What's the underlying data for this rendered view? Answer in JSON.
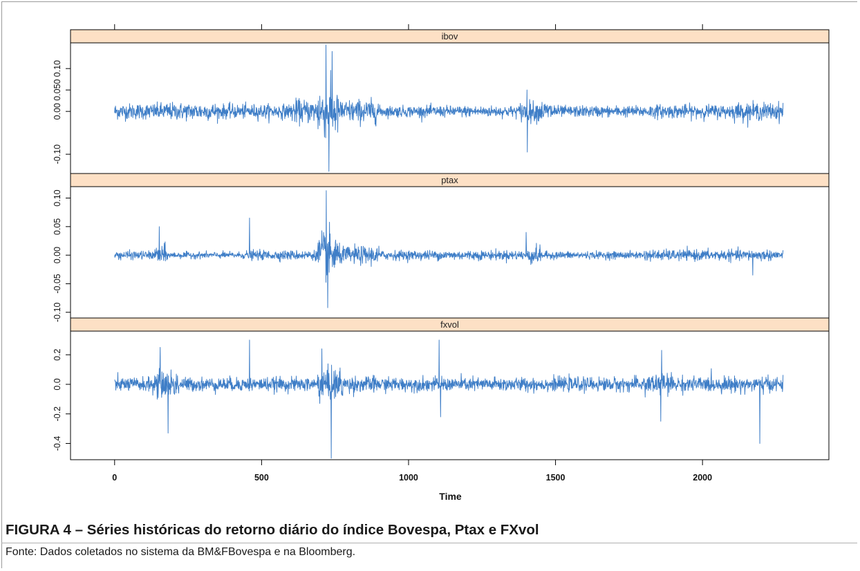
{
  "chart_data": {
    "type": "line",
    "xlabel": "Time",
    "xlim": [
      -150,
      2430
    ],
    "x_ticks": [
      0,
      500,
      1000,
      1500,
      2000
    ],
    "x_tick_labels": [
      "0",
      "500",
      "1000",
      "1500",
      "2000"
    ],
    "n_points": 2275,
    "line_color": "#3f7ec7",
    "strip_color": "#fde0c5",
    "panels": [
      {
        "name": "ibov",
        "ylim": [
          -0.145,
          0.16
        ],
        "y_ticks": [
          -0.1,
          0.0,
          0.05,
          0.1
        ],
        "y_tick_labels": [
          "-0.10",
          "0.00",
          "0.050",
          "0.10"
        ],
        "min": -0.14,
        "max": 0.155,
        "regimes": [
          {
            "x": [
              0,
              150
            ],
            "amp": 0.02
          },
          {
            "x": [
              150,
              350
            ],
            "amp": 0.022
          },
          {
            "x": [
              350,
              600
            ],
            "amp": 0.018
          },
          {
            "x": [
              600,
              690
            ],
            "amp": 0.03
          },
          {
            "x": [
              690,
              760
            ],
            "amp": 0.065
          },
          {
            "x": [
              760,
              900
            ],
            "amp": 0.03
          },
          {
            "x": [
              900,
              1380
            ],
            "amp": 0.014
          },
          {
            "x": [
              1380,
              1500
            ],
            "amp": 0.026
          },
          {
            "x": [
              1500,
              1800
            ],
            "amp": 0.014
          },
          {
            "x": [
              1800,
              2100
            ],
            "amp": 0.017
          },
          {
            "x": [
              2100,
              2275
            ],
            "amp": 0.022
          }
        ],
        "spikes": [
          {
            "x": 719,
            "y": 0.155
          },
          {
            "x": 729,
            "y": -0.14
          },
          {
            "x": 740,
            "y": 0.14
          },
          {
            "x": 1404,
            "y": -0.095
          },
          {
            "x": 1403,
            "y": 0.05
          }
        ]
      },
      {
        "name": "ptax",
        "ylim": [
          -0.11,
          0.12
        ],
        "y_ticks": [
          -0.1,
          -0.05,
          0.0,
          0.05,
          0.1
        ],
        "y_tick_labels": [
          "-0.10",
          "-0.05",
          "0.00",
          "0.05",
          "0.10"
        ],
        "min": -0.095,
        "max": 0.115,
        "regimes": [
          {
            "x": [
              0,
              140
            ],
            "amp": 0.008
          },
          {
            "x": [
              140,
              180
            ],
            "amp": 0.02
          },
          {
            "x": [
              180,
              440
            ],
            "amp": 0.006
          },
          {
            "x": [
              440,
              690
            ],
            "amp": 0.009
          },
          {
            "x": [
              690,
              760
            ],
            "amp": 0.045
          },
          {
            "x": [
              760,
              900
            ],
            "amp": 0.017
          },
          {
            "x": [
              900,
              1400
            ],
            "amp": 0.009
          },
          {
            "x": [
              1400,
              1450
            ],
            "amp": 0.017
          },
          {
            "x": [
              1450,
              1800
            ],
            "amp": 0.007
          },
          {
            "x": [
              1800,
              2275
            ],
            "amp": 0.01
          }
        ],
        "spikes": [
          {
            "x": 152,
            "y": 0.05
          },
          {
            "x": 459,
            "y": 0.065
          },
          {
            "x": 720,
            "y": 0.113
          },
          {
            "x": 725,
            "y": -0.092
          },
          {
            "x": 1400,
            "y": 0.04
          },
          {
            "x": 2171,
            "y": -0.035
          }
        ]
      },
      {
        "name": "fxvol",
        "ylim": [
          -0.51,
          0.36
        ],
        "y_ticks": [
          -0.4,
          -0.2,
          0.0,
          0.2
        ],
        "y_tick_labels": [
          "-0.4",
          "-0.2",
          "0.0",
          "0.2"
        ],
        "min": -0.5,
        "max": 0.32,
        "regimes": [
          {
            "x": [
              0,
              130
            ],
            "amp": 0.05
          },
          {
            "x": [
              130,
              220
            ],
            "amp": 0.1
          },
          {
            "x": [
              220,
              690
            ],
            "amp": 0.05
          },
          {
            "x": [
              690,
              780
            ],
            "amp": 0.12
          },
          {
            "x": [
              780,
              900
            ],
            "amp": 0.06
          },
          {
            "x": [
              900,
              1800
            ],
            "amp": 0.05
          },
          {
            "x": [
              1800,
              1900
            ],
            "amp": 0.08
          },
          {
            "x": [
              1900,
              2275
            ],
            "amp": 0.055
          }
        ],
        "spikes": [
          {
            "x": 155,
            "y": 0.25
          },
          {
            "x": 182,
            "y": -0.33
          },
          {
            "x": 459,
            "y": 0.3
          },
          {
            "x": 705,
            "y": 0.24
          },
          {
            "x": 737,
            "y": -0.5
          },
          {
            "x": 1104,
            "y": 0.3
          },
          {
            "x": 1109,
            "y": -0.22
          },
          {
            "x": 1861,
            "y": 0.23
          },
          {
            "x": 1858,
            "y": -0.25
          },
          {
            "x": 2195,
            "y": -0.4
          }
        ]
      }
    ]
  },
  "caption": {
    "figure_title": "FIGURA 4 – Séries históricas do retorno diário do índice Bovespa, Ptax e FXvol",
    "source": "Fonte: Dados coletados no sistema da BM&FBovespa e na Bloomberg."
  }
}
